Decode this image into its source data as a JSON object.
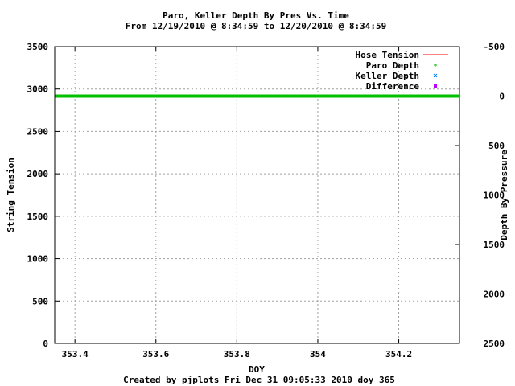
{
  "chart_data": {
    "type": "line",
    "title": "Paro, Keller Depth By Pres Vs. Time",
    "subtitle": "From 12/19/2010 @ 8:34:59 to 12/20/2010 @ 8:34:59",
    "xlabel": "DOY",
    "ylabel": "String Tension",
    "y2label": "Depth By Pressure",
    "footer": "Created by pjplots Fri Dec 31 09:05:33 2010 doy 365",
    "xlim": [
      353.35,
      354.35
    ],
    "ylim": [
      0,
      3500
    ],
    "y2lim": [
      2500,
      -500
    ],
    "x_ticks": [
      353.4,
      353.6,
      353.8,
      354,
      354.2
    ],
    "x_tick_labels": [
      "353.4",
      "353.6",
      "353.8",
      "354",
      "354.2"
    ],
    "y_ticks": [
      0,
      500,
      1000,
      1500,
      2000,
      2500,
      3000,
      3500
    ],
    "y_tick_labels": [
      "0",
      "500",
      "1000",
      "1500",
      "2000",
      "2500",
      "3000",
      "3500"
    ],
    "y2_ticks": [
      -500,
      0,
      500,
      1000,
      1500,
      2000,
      2500
    ],
    "y2_tick_labels": [
      "-500",
      "0",
      "500",
      "1000",
      "1500",
      "2000",
      "2500"
    ],
    "grid": true,
    "legend_position": "top-right",
    "series": [
      {
        "name": "Hose Tension",
        "color": "#ff0000",
        "marker": "line",
        "x": [],
        "y": []
      },
      {
        "name": "Paro Depth",
        "color": "#00c000",
        "marker": "plus",
        "axis": "y2",
        "x": [
          353.35,
          354.35
        ],
        "y": [
          0,
          0
        ]
      },
      {
        "name": "Keller Depth",
        "color": "#0080ff",
        "marker": "cross",
        "x": [],
        "y": []
      },
      {
        "name": "Difference",
        "color": "#c000ff",
        "marker": "square",
        "x": [],
        "y": []
      }
    ]
  }
}
